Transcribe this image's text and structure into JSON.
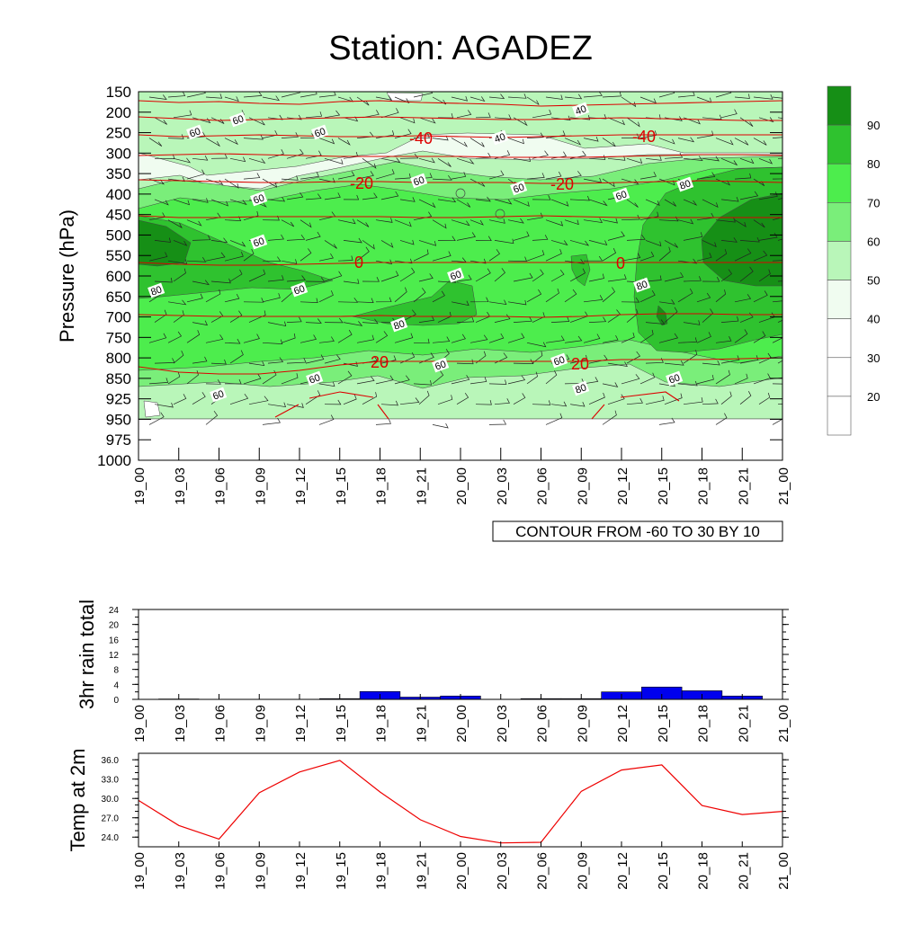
{
  "title": "Station: AGADEZ",
  "time_labels": [
    "19_00",
    "19_03",
    "19_06",
    "19_09",
    "19_12",
    "19_15",
    "19_18",
    "19_21",
    "20_00",
    "20_03",
    "20_06",
    "20_09",
    "20_12",
    "20_15",
    "20_18",
    "20_21",
    "21_00"
  ],
  "colors": {
    "rh_fill": [
      "#ffffff",
      "#ffffff",
      "#ffffff",
      "#f0fcf0",
      "#b9f6b9",
      "#7aee7a",
      "#4ded4d",
      "#2fc22f",
      "#168f16"
    ],
    "temp_contour": "#dd0000",
    "rain_bar": "#0000ee",
    "temp_line": "#ee0000"
  },
  "chart_data": [
    {
      "type": "heatmap",
      "title": "Station: AGADEZ",
      "ylabel": "Pressure (hPa)",
      "y_ticks": [
        "150",
        "200",
        "250",
        "300",
        "350",
        "400",
        "450",
        "500",
        "550",
        "600",
        "650",
        "700",
        "750",
        "800",
        "850",
        "925",
        "950",
        "975",
        "1000"
      ],
      "colorbar": {
        "levels": [
          20,
          30,
          40,
          50,
          60,
          70,
          80,
          90
        ],
        "labels": [
          "20",
          "30",
          "40",
          "50",
          "60",
          "70",
          "80",
          "90"
        ]
      },
      "rh_contour_labels": [
        "60",
        "60",
        "60",
        "60",
        "60",
        "60",
        "60",
        "60",
        "60",
        "60",
        "60",
        "60",
        "60",
        "60",
        "60",
        "80",
        "80",
        "80",
        "80",
        "80",
        "80",
        "80",
        "80",
        "80",
        "40",
        "40"
      ],
      "temp_contour_labels": [
        "-40",
        "-40",
        "-20",
        "-20",
        "0",
        "0",
        "20",
        "20"
      ],
      "info_box": "CONTOUR FROM -60 TO 30 BY 10"
    },
    {
      "type": "bar",
      "ylabel": "3hr rain total",
      "categories": [
        "19_00",
        "19_03",
        "19_06",
        "19_09",
        "19_12",
        "19_15",
        "19_18",
        "19_21",
        "20_00",
        "20_03",
        "20_06",
        "20_09",
        "20_12",
        "20_15",
        "20_18",
        "20_21",
        "21_00"
      ],
      "values": [
        0,
        0.1,
        0,
        0,
        0,
        0.2,
        2.1,
        0.6,
        0.9,
        0,
        0.2,
        0.2,
        2,
        3.3,
        2.3,
        0.9,
        0
      ],
      "ylim": [
        0,
        24
      ],
      "y_ticks": [
        "0",
        "4",
        "8",
        "12",
        "16",
        "20",
        "24"
      ]
    },
    {
      "type": "line",
      "ylabel": "Temp at 2m",
      "categories": [
        "19_00",
        "19_03",
        "19_06",
        "19_09",
        "19_12",
        "19_15",
        "19_18",
        "19_21",
        "20_00",
        "20_03",
        "20_06",
        "20_09",
        "20_12",
        "20_15",
        "20_18",
        "20_21",
        "21_00"
      ],
      "values": [
        29.7,
        25.8,
        23.7,
        30.9,
        34.1,
        35.9,
        31.0,
        26.7,
        24.1,
        23.1,
        23.2,
        31.1,
        34.4,
        35.2,
        28.9,
        27.5,
        28.0
      ],
      "ylim": [
        22.5,
        37.0
      ],
      "y_ticks": [
        "24.0",
        "27.0",
        "30.0",
        "33.0",
        "36.0"
      ]
    }
  ]
}
